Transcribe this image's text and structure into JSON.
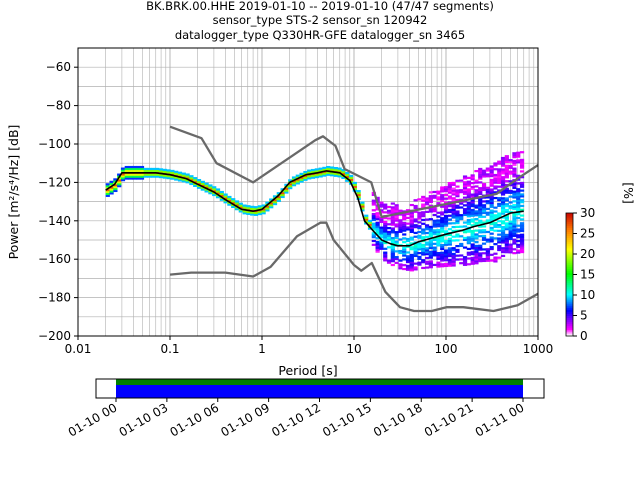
{
  "title": {
    "line1": "BK.BRK.00.HHE   2019-01-10 -- 2019-01-10  (47/47 segments)",
    "line2": "sensor_type STS-2 sensor_sn 120942",
    "line3": "datalogger_type Q330HR-GFE datalogger_sn 3465"
  },
  "chart_data": {
    "type": "heatmap",
    "xlabel": "Period [s]",
    "ylabel": "Power [m²/s⁴/Hz] [dB]",
    "xscale": "log",
    "xlim": [
      0.01,
      1000
    ],
    "ylim": [
      -200,
      -50
    ],
    "x_ticks": [
      0.01,
      0.1,
      1,
      10,
      100,
      1000
    ],
    "x_tick_labels": [
      "0.01",
      "0.1",
      "1",
      "10",
      "100",
      "1000"
    ],
    "y_ticks": [
      -200,
      -180,
      -160,
      -140,
      -120,
      -100,
      -80,
      -60
    ],
    "y_tick_labels": [
      "−200",
      "−180",
      "−160",
      "−140",
      "−120",
      "−100",
      "−80",
      "−60"
    ],
    "grid": true,
    "noise_model_high": [
      [
        0.1,
        -91
      ],
      [
        0.22,
        -97
      ],
      [
        0.32,
        -110
      ],
      [
        0.8,
        -120
      ],
      [
        3.8,
        -98
      ],
      [
        4.6,
        -96
      ],
      [
        6.3,
        -101
      ],
      [
        7.9,
        -113
      ],
      [
        15.4,
        -120
      ],
      [
        20,
        -138
      ],
      [
        354,
        -126
      ],
      [
        600,
        -118
      ],
      [
        1000,
        -111
      ]
    ],
    "noise_model_low": [
      [
        0.1,
        -168
      ],
      [
        0.17,
        -167
      ],
      [
        0.4,
        -167
      ],
      [
        0.8,
        -169
      ],
      [
        1.24,
        -164
      ],
      [
        2.4,
        -148
      ],
      [
        4.3,
        -141
      ],
      [
        5.0,
        -141
      ],
      [
        6.0,
        -150
      ],
      [
        10,
        -163
      ],
      [
        12,
        -166
      ],
      [
        15.6,
        -162
      ],
      [
        21.9,
        -177
      ],
      [
        31.6,
        -185
      ],
      [
        45,
        -187
      ],
      [
        70,
        -187
      ],
      [
        101,
        -185
      ],
      [
        154,
        -185
      ],
      [
        328,
        -187
      ],
      [
        600,
        -184
      ],
      [
        1000,
        -178
      ]
    ],
    "mode_curve": [
      [
        0.02,
        -124
      ],
      [
        0.025,
        -121
      ],
      [
        0.03,
        -115
      ],
      [
        0.04,
        -115
      ],
      [
        0.05,
        -115
      ],
      [
        0.07,
        -115
      ],
      [
        0.1,
        -116
      ],
      [
        0.15,
        -118
      ],
      [
        0.2,
        -121
      ],
      [
        0.3,
        -125
      ],
      [
        0.4,
        -129
      ],
      [
        0.6,
        -134
      ],
      [
        0.8,
        -135
      ],
      [
        1.0,
        -134
      ],
      [
        1.5,
        -127
      ],
      [
        2,
        -120
      ],
      [
        3,
        -116
      ],
      [
        4,
        -115
      ],
      [
        5,
        -114
      ],
      [
        7,
        -115
      ],
      [
        9,
        -119
      ],
      [
        11,
        -128
      ],
      [
        13,
        -140
      ],
      [
        16,
        -145
      ],
      [
        20,
        -150
      ],
      [
        25,
        -152
      ],
      [
        30,
        -153
      ],
      [
        40,
        -153
      ],
      [
        50,
        -151
      ],
      [
        70,
        -149
      ],
      [
        100,
        -147
      ],
      [
        150,
        -145
      ],
      [
        200,
        -143
      ],
      [
        300,
        -141
      ],
      [
        500,
        -136
      ],
      [
        700,
        -135
      ]
    ],
    "colorbar": {
      "label": "[%]",
      "range": [
        0,
        30
      ],
      "ticks": [
        0,
        5,
        10,
        15,
        20,
        25,
        30
      ],
      "tick_labels": [
        "0",
        "5",
        "10",
        "15",
        "20",
        "25",
        "30"
      ]
    },
    "coverage": {
      "time_tick_labels": [
        "01-10 00",
        "01-10 03",
        "01-10 06",
        "01-10 09",
        "01-10 12",
        "01-10 15",
        "01-10 18",
        "01-10 21",
        "01-11 00"
      ],
      "start_hours": 0,
      "end_hours": 24,
      "bar_colors": {
        "data": "#0000ff",
        "processed": "#008000"
      }
    }
  }
}
